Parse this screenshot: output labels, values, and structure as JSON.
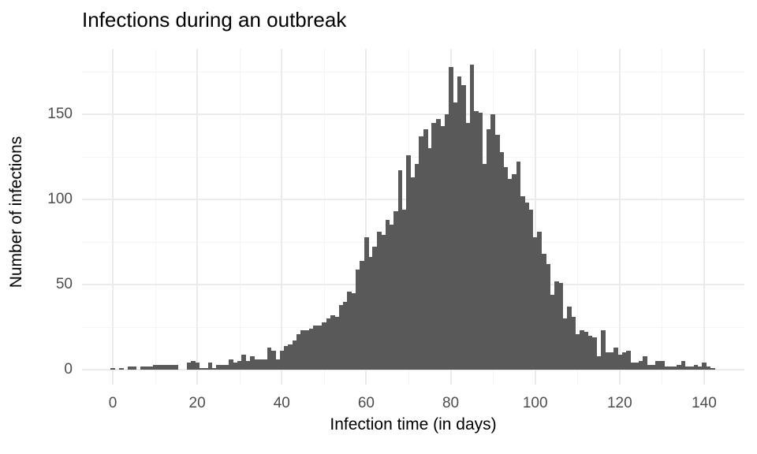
{
  "title": "Infections during an outbreak",
  "colors": {
    "bar": "#595959",
    "grid_major": "#ebebeb",
    "grid_minor": "#f4f4f4",
    "tick_label": "#4d4d4d",
    "title_text": "#000000",
    "background": "#ffffff"
  },
  "chart_data": {
    "type": "bar",
    "subtype": "histogram",
    "title": "Infections during an outbreak",
    "xlabel": "Infection time (in days)",
    "ylabel": "Number of infections",
    "legend": "none",
    "grid": "major+minor",
    "x_start": 0,
    "bin_width_days": 1,
    "xlim": [
      -7,
      149
    ],
    "ylim": [
      0,
      188
    ],
    "x_ticks": [
      0,
      20,
      40,
      60,
      80,
      100,
      120,
      140
    ],
    "x_minor_ticks": [
      10,
      30,
      50,
      70,
      90,
      110,
      130
    ],
    "y_ticks": [
      0,
      50,
      100,
      150
    ],
    "y_minor_ticks": [
      25,
      75,
      125,
      175
    ],
    "values": [
      1,
      0,
      1,
      0,
      2,
      2,
      0,
      2,
      2,
      2,
      3,
      3,
      3,
      3,
      3,
      3,
      0,
      0,
      4,
      5,
      4,
      1,
      1,
      4,
      1,
      3,
      3,
      3,
      6,
      4,
      5,
      9,
      5,
      8,
      6,
      6,
      6,
      13,
      11,
      6,
      11,
      14,
      15,
      17,
      21,
      23,
      23,
      24,
      26,
      26,
      28,
      30,
      32,
      31,
      38,
      40,
      46,
      45,
      59,
      64,
      78,
      66,
      72,
      81,
      79,
      88,
      85,
      93,
      117,
      94,
      126,
      113,
      121,
      137,
      141,
      130,
      145,
      147,
      143,
      150,
      178,
      157,
      172,
      167,
      145,
      179,
      152,
      151,
      121,
      141,
      150,
      138,
      128,
      119,
      112,
      115,
      122,
      102,
      98,
      94,
      78,
      81,
      68,
      62,
      44,
      52,
      51,
      30,
      37,
      31,
      21,
      23,
      22,
      20,
      19,
      8,
      23,
      10,
      10,
      13,
      9,
      10,
      11,
      4,
      4,
      5,
      8,
      3,
      3,
      5,
      5,
      2,
      2,
      2,
      3,
      5,
      2,
      2,
      3,
      2,
      4,
      2,
      1
    ]
  }
}
